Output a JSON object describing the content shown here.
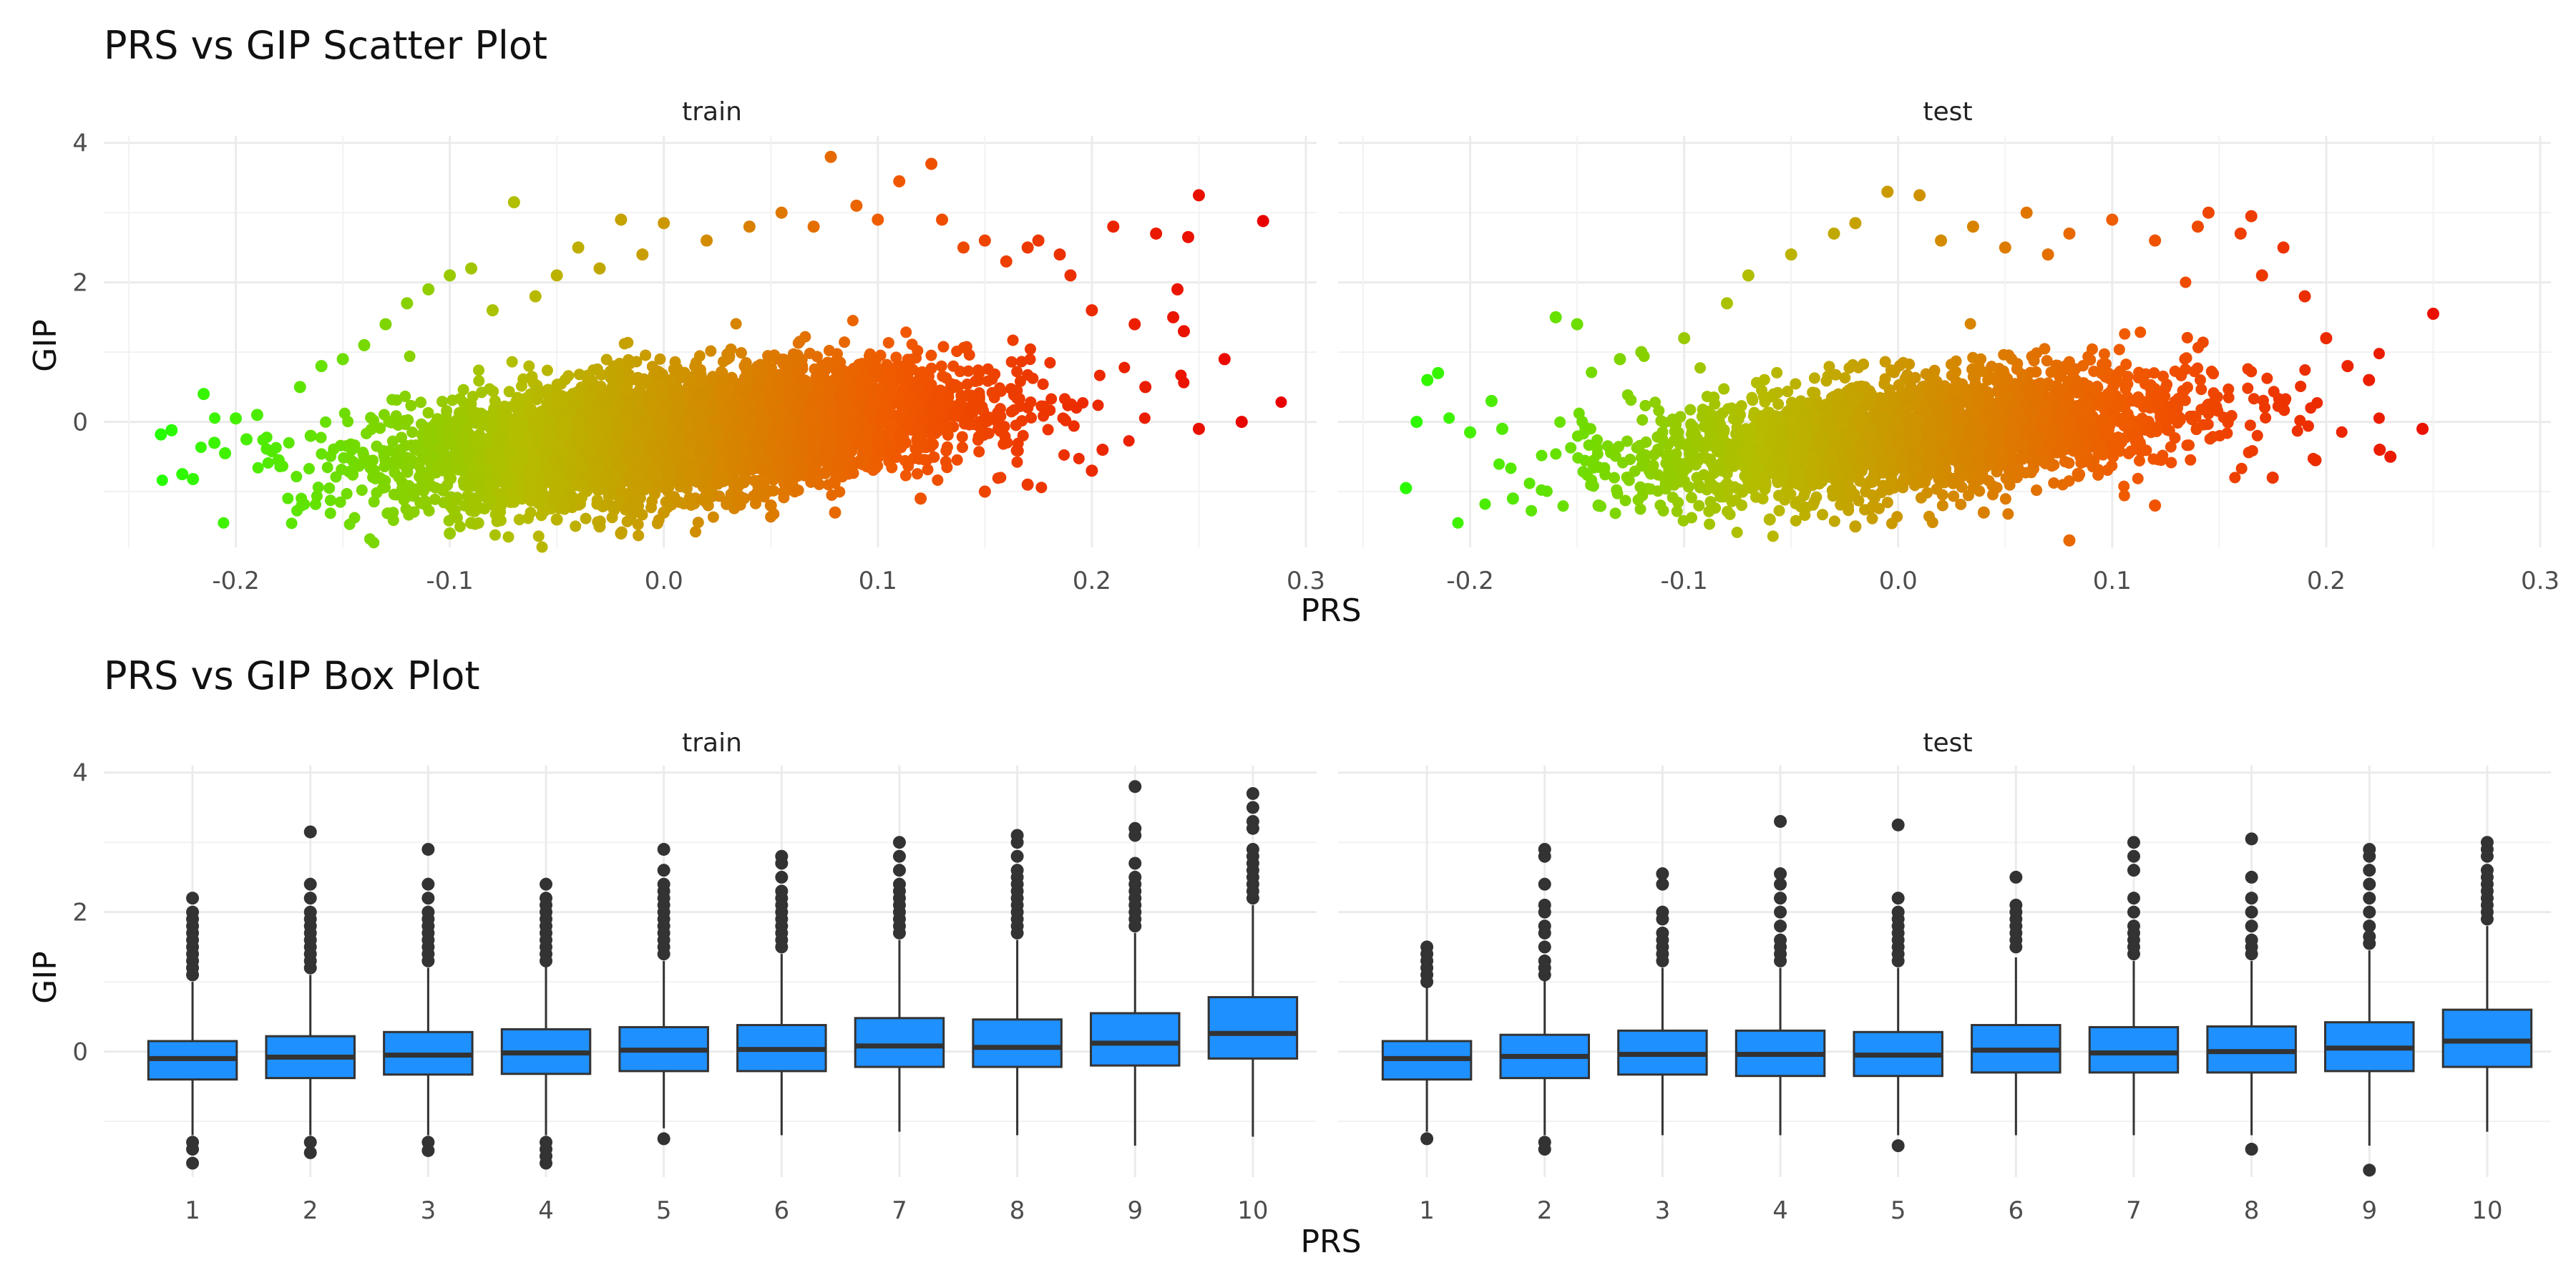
{
  "chart_data": [
    {
      "type": "scatter",
      "title": "PRS vs GIP Scatter Plot",
      "xlabel": "PRS",
      "ylabel": "GIP",
      "panels": [
        "train",
        "test"
      ],
      "xlim": [
        -0.25,
        0.3
      ],
      "ylim": [
        -1.8,
        4.1
      ],
      "x_ticks": [
        "-0.2",
        "-0.1",
        "0.0",
        "0.1",
        "0.2",
        "0.3"
      ],
      "x_tick_values": [
        -0.2,
        -0.1,
        0.0,
        0.1,
        0.2,
        0.3
      ],
      "y_ticks": [
        "0",
        "2",
        "4"
      ],
      "y_tick_values": [
        0,
        2,
        4
      ],
      "grid": true,
      "color_gradient": [
        "#22ff00",
        "#b5bd00",
        "#f05a00",
        "#e80000"
      ],
      "color_domain": [
        -0.24,
        0.28
      ],
      "series": [
        {
          "panel": "train",
          "points": [
            [
              -0.235,
              -0.18
            ],
            [
              -0.23,
              -0.12
            ],
            [
              -0.225,
              -0.75
            ],
            [
              -0.22,
              -0.82
            ],
            [
              -0.215,
              0.4
            ],
            [
              -0.21,
              -0.3
            ],
            [
              -0.205,
              -0.45
            ],
            [
              -0.2,
              0.05
            ],
            [
              -0.195,
              -0.25
            ],
            [
              -0.19,
              0.1
            ],
            [
              -0.18,
              -0.55
            ],
            [
              -0.17,
              0.5
            ],
            [
              -0.165,
              -0.2
            ],
            [
              -0.16,
              0.8
            ],
            [
              -0.15,
              0.9
            ],
            [
              -0.14,
              1.1
            ],
            [
              -0.13,
              1.4
            ],
            [
              -0.12,
              1.7
            ],
            [
              -0.11,
              1.9
            ],
            [
              -0.1,
              2.1
            ],
            [
              -0.09,
              2.2
            ],
            [
              -0.08,
              1.6
            ],
            [
              -0.07,
              3.15
            ],
            [
              -0.06,
              1.8
            ],
            [
              -0.05,
              2.1
            ],
            [
              -0.04,
              2.5
            ],
            [
              -0.03,
              2.2
            ],
            [
              -0.02,
              2.9
            ],
            [
              -0.01,
              2.4
            ],
            [
              0.0,
              2.85
            ],
            [
              0.02,
              2.6
            ],
            [
              0.04,
              2.8
            ],
            [
              0.055,
              3.0
            ],
            [
              0.07,
              2.8
            ],
            [
              0.078,
              3.8
            ],
            [
              0.09,
              3.1
            ],
            [
              0.1,
              2.9
            ],
            [
              0.11,
              3.45
            ],
            [
              0.125,
              3.7
            ],
            [
              0.13,
              2.9
            ],
            [
              0.14,
              2.5
            ],
            [
              0.15,
              2.6
            ],
            [
              0.16,
              2.3
            ],
            [
              0.17,
              2.5
            ],
            [
              0.175,
              2.6
            ],
            [
              0.185,
              2.4
            ],
            [
              0.19,
              2.1
            ],
            [
              0.2,
              1.6
            ],
            [
              0.21,
              2.8
            ],
            [
              0.22,
              1.4
            ],
            [
              0.225,
              0.5
            ],
            [
              0.23,
              2.7
            ],
            [
              0.238,
              1.5
            ],
            [
              0.243,
              1.3
            ],
            [
              0.25,
              -0.1
            ],
            [
              0.25,
              3.25
            ],
            [
              0.262,
              0.9
            ],
            [
              0.27,
              0.0
            ],
            [
              0.28,
              2.88
            ],
            [
              0.245,
              2.65
            ],
            [
              0.24,
              1.9
            ],
            [
              -0.09,
              -1.45
            ],
            [
              -0.1,
              -1.6
            ],
            [
              -0.05,
              -1.4
            ],
            [
              -0.03,
              -1.5
            ],
            [
              -0.02,
              -1.6
            ],
            [
              0.0,
              -1.3
            ],
            [
              0.05,
              -1.2
            ],
            [
              0.08,
              -1.3
            ],
            [
              0.12,
              -1.1
            ],
            [
              0.15,
              -1.0
            ],
            [
              0.17,
              -0.9
            ],
            [
              0.2,
              -0.7
            ],
            [
              0.205,
              -0.4
            ]
          ]
        },
        {
          "panel": "test",
          "points": [
            [
              -0.23,
              -0.95
            ],
            [
              -0.225,
              0.0
            ],
            [
              -0.22,
              0.6
            ],
            [
              -0.215,
              0.7
            ],
            [
              -0.2,
              -0.15
            ],
            [
              -0.19,
              0.3
            ],
            [
              -0.185,
              -0.1
            ],
            [
              -0.18,
              -1.1
            ],
            [
              -0.16,
              1.5
            ],
            [
              -0.15,
              1.4
            ],
            [
              -0.14,
              -1.2
            ],
            [
              -0.13,
              0.9
            ],
            [
              -0.12,
              1.0
            ],
            [
              -0.1,
              1.2
            ],
            [
              -0.08,
              1.7
            ],
            [
              -0.07,
              2.1
            ],
            [
              -0.05,
              2.4
            ],
            [
              -0.03,
              2.7
            ],
            [
              -0.02,
              2.85
            ],
            [
              -0.005,
              3.3
            ],
            [
              0.01,
              3.25
            ],
            [
              0.02,
              2.6
            ],
            [
              0.035,
              2.8
            ],
            [
              0.05,
              2.5
            ],
            [
              0.06,
              3.0
            ],
            [
              0.07,
              2.4
            ],
            [
              0.08,
              2.7
            ],
            [
              0.1,
              2.9
            ],
            [
              0.12,
              2.6
            ],
            [
              0.14,
              2.8
            ],
            [
              0.145,
              3.0
            ],
            [
              0.16,
              2.7
            ],
            [
              0.165,
              2.95
            ],
            [
              0.17,
              2.1
            ],
            [
              0.18,
              2.5
            ],
            [
              0.19,
              1.8
            ],
            [
              0.2,
              1.2
            ],
            [
              0.21,
              0.8
            ],
            [
              0.22,
              0.6
            ],
            [
              0.225,
              -0.4
            ],
            [
              0.23,
              -0.5
            ],
            [
              0.245,
              -0.1
            ],
            [
              0.25,
              1.55
            ],
            [
              0.195,
              -0.55
            ],
            [
              0.175,
              -0.8
            ],
            [
              0.08,
              -1.7
            ],
            [
              0.04,
              -1.3
            ],
            [
              -0.02,
              -1.5
            ],
            [
              -0.06,
              -1.4
            ],
            [
              0.12,
              -1.2
            ]
          ]
        }
      ]
    },
    {
      "type": "box",
      "title": "PRS vs GIP Box Plot",
      "xlabel": "PRS",
      "ylabel": "GIP",
      "panels": [
        "train",
        "test"
      ],
      "categories": [
        "1",
        "2",
        "3",
        "4",
        "5",
        "6",
        "7",
        "8",
        "9",
        "10"
      ],
      "ylim": [
        -1.8,
        4.1
      ],
      "y_ticks": [
        "0",
        "2",
        "4"
      ],
      "y_tick_values": [
        0,
        2,
        4
      ],
      "grid": true,
      "box_fill": "#1e90ff",
      "box_edge": "#333333",
      "series": [
        {
          "panel": "train",
          "boxes": [
            {
              "q1": -0.4,
              "median": -0.1,
              "q3": 0.15,
              "whisker_low": -1.2,
              "whisker_high": 1.0,
              "outliers": [
                1.1,
                1.2,
                1.3,
                1.4,
                1.5,
                1.6,
                1.7,
                1.8,
                1.9,
                2.0,
                2.2,
                -1.3,
                -1.4,
                -1.6
              ]
            },
            {
              "q1": -0.38,
              "median": -0.08,
              "q3": 0.22,
              "whisker_low": -1.2,
              "whisker_high": 1.1,
              "outliers": [
                1.2,
                1.3,
                1.4,
                1.5,
                1.6,
                1.7,
                1.8,
                1.9,
                2.0,
                2.2,
                2.4,
                3.15,
                -1.3,
                -1.45
              ]
            },
            {
              "q1": -0.33,
              "median": -0.05,
              "q3": 0.28,
              "whisker_low": -1.2,
              "whisker_high": 1.2,
              "outliers": [
                1.3,
                1.4,
                1.5,
                1.6,
                1.7,
                1.8,
                1.9,
                2.0,
                2.2,
                2.4,
                2.9,
                -1.3,
                -1.42
              ]
            },
            {
              "q1": -0.32,
              "median": -0.02,
              "q3": 0.32,
              "whisker_low": -1.2,
              "whisker_high": 1.25,
              "outliers": [
                1.3,
                1.4,
                1.5,
                1.6,
                1.7,
                1.8,
                1.9,
                2.0,
                2.1,
                2.2,
                2.4,
                -1.3,
                -1.4,
                -1.5,
                -1.6
              ]
            },
            {
              "q1": -0.28,
              "median": 0.02,
              "q3": 0.35,
              "whisker_low": -1.1,
              "whisker_high": 1.3,
              "outliers": [
                1.4,
                1.5,
                1.6,
                1.7,
                1.8,
                1.9,
                2.0,
                2.1,
                2.2,
                2.3,
                2.4,
                2.6,
                2.9,
                -1.25
              ]
            },
            {
              "q1": -0.28,
              "median": 0.03,
              "q3": 0.38,
              "whisker_low": -1.2,
              "whisker_high": 1.4,
              "outliers": [
                1.5,
                1.6,
                1.7,
                1.8,
                1.9,
                2.0,
                2.1,
                2.2,
                2.3,
                2.5,
                2.7,
                2.8
              ]
            },
            {
              "q1": -0.22,
              "median": 0.08,
              "q3": 0.48,
              "whisker_low": -1.15,
              "whisker_high": 1.6,
              "outliers": [
                1.7,
                1.8,
                1.9,
                2.0,
                2.1,
                2.2,
                2.3,
                2.4,
                2.6,
                2.8,
                3.0
              ]
            },
            {
              "q1": -0.22,
              "median": 0.06,
              "q3": 0.46,
              "whisker_low": -1.2,
              "whisker_high": 1.6,
              "outliers": [
                1.7,
                1.8,
                1.9,
                2.0,
                2.1,
                2.2,
                2.3,
                2.4,
                2.5,
                2.6,
                2.8,
                3.0,
                3.1
              ]
            },
            {
              "q1": -0.2,
              "median": 0.12,
              "q3": 0.55,
              "whisker_low": -1.35,
              "whisker_high": 1.7,
              "outliers": [
                1.8,
                1.9,
                2.0,
                2.1,
                2.2,
                2.3,
                2.4,
                2.5,
                2.7,
                3.1,
                3.2,
                3.8
              ]
            },
            {
              "q1": -0.1,
              "median": 0.26,
              "q3": 0.78,
              "whisker_low": -1.22,
              "whisker_high": 2.1,
              "outliers": [
                2.2,
                2.3,
                2.4,
                2.5,
                2.6,
                2.7,
                2.8,
                2.9,
                3.2,
                3.3,
                3.5,
                3.7
              ]
            }
          ]
        },
        {
          "panel": "test",
          "boxes": [
            {
              "q1": -0.4,
              "median": -0.1,
              "q3": 0.15,
              "whisker_low": -1.15,
              "whisker_high": 0.95,
              "outliers": [
                1.0,
                1.1,
                1.2,
                1.3,
                1.4,
                1.5,
                -1.25
              ]
            },
            {
              "q1": -0.38,
              "median": -0.07,
              "q3": 0.24,
              "whisker_low": -1.2,
              "whisker_high": 1.05,
              "outliers": [
                1.1,
                1.2,
                1.3,
                1.5,
                1.7,
                1.8,
                2.0,
                2.1,
                2.4,
                2.8,
                2.9,
                -1.3,
                -1.4
              ]
            },
            {
              "q1": -0.33,
              "median": -0.04,
              "q3": 0.3,
              "whisker_low": -1.2,
              "whisker_high": 1.2,
              "outliers": [
                1.3,
                1.4,
                1.5,
                1.6,
                1.7,
                1.9,
                2.0,
                2.4,
                2.55
              ]
            },
            {
              "q1": -0.35,
              "median": -0.04,
              "q3": 0.3,
              "whisker_low": -1.2,
              "whisker_high": 1.2,
              "outliers": [
                1.3,
                1.4,
                1.5,
                1.6,
                1.8,
                2.0,
                2.2,
                2.4,
                2.55,
                3.3
              ]
            },
            {
              "q1": -0.35,
              "median": -0.05,
              "q3": 0.28,
              "whisker_low": -1.2,
              "whisker_high": 1.2,
              "outliers": [
                1.3,
                1.4,
                1.5,
                1.6,
                1.7,
                1.8,
                1.9,
                2.0,
                2.2,
                3.25,
                -1.35
              ]
            },
            {
              "q1": -0.3,
              "median": 0.02,
              "q3": 0.38,
              "whisker_low": -1.2,
              "whisker_high": 1.35,
              "outliers": [
                1.5,
                1.6,
                1.7,
                1.8,
                1.9,
                2.0,
                2.1,
                2.5
              ]
            },
            {
              "q1": -0.3,
              "median": -0.02,
              "q3": 0.35,
              "whisker_low": -1.2,
              "whisker_high": 1.3,
              "outliers": [
                1.4,
                1.5,
                1.6,
                1.7,
                1.8,
                2.0,
                2.2,
                2.6,
                2.8,
                3.0
              ]
            },
            {
              "q1": -0.3,
              "median": 0.0,
              "q3": 0.36,
              "whisker_low": -1.2,
              "whisker_high": 1.3,
              "outliers": [
                1.4,
                1.5,
                1.6,
                1.8,
                2.0,
                2.2,
                2.5,
                3.05,
                -1.4
              ]
            },
            {
              "q1": -0.28,
              "median": 0.05,
              "q3": 0.42,
              "whisker_low": -1.35,
              "whisker_high": 1.45,
              "outliers": [
                1.55,
                1.65,
                1.8,
                2.0,
                2.2,
                2.4,
                2.6,
                2.8,
                2.9,
                -1.7
              ]
            },
            {
              "q1": -0.22,
              "median": 0.15,
              "q3": 0.6,
              "whisker_low": -1.15,
              "whisker_high": 1.8,
              "outliers": [
                1.9,
                2.0,
                2.1,
                2.2,
                2.3,
                2.4,
                2.5,
                2.6,
                2.8,
                2.9,
                3.0
              ]
            }
          ]
        }
      ]
    }
  ]
}
